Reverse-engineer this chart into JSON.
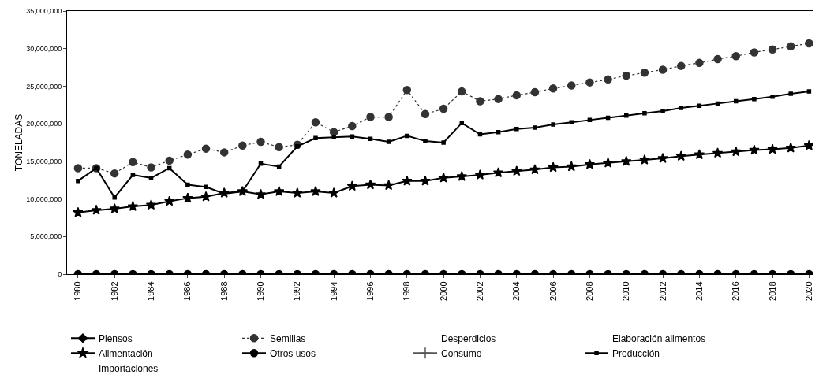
{
  "chart_data": {
    "type": "line",
    "ylabel": "TONELADAS",
    "grid": false,
    "legend": "bottom",
    "x": [
      1980,
      1981,
      1982,
      1983,
      1984,
      1985,
      1986,
      1987,
      1988,
      1989,
      1990,
      1991,
      1992,
      1993,
      1994,
      1995,
      1996,
      1997,
      1998,
      1999,
      2000,
      2001,
      2002,
      2003,
      2004,
      2005,
      2006,
      2007,
      2008,
      2009,
      2010,
      2011,
      2012,
      2013,
      2014,
      2015,
      2016,
      2017,
      2018,
      2019,
      2020
    ],
    "xlim": [
      1979.4,
      2020.2
    ],
    "xticks": [
      1980,
      1982,
      1984,
      1986,
      1988,
      1990,
      1992,
      1994,
      1996,
      1998,
      2000,
      2002,
      2004,
      2006,
      2008,
      2010,
      2012,
      2014,
      2016,
      2018,
      2020
    ],
    "ylim": [
      0,
      35000000
    ],
    "yticks": [
      {
        "value": 0,
        "label": "0"
      },
      {
        "value": 5000000,
        "label": "5,000,000"
      },
      {
        "value": 10000000,
        "label": "10,000,000"
      },
      {
        "value": 15000000,
        "label": "15,000,000"
      },
      {
        "value": 20000000,
        "label": "20,000,000"
      },
      {
        "value": 25000000,
        "label": "25,000,000"
      },
      {
        "value": 30000000,
        "label": "30,000,000"
      },
      {
        "value": 35000000,
        "label": "35,000,000"
      }
    ],
    "series": [
      {
        "name": "Piensos",
        "color": "#000000",
        "marker": "diamond",
        "line_style": "solid",
        "values": [
          null,
          null,
          null,
          null,
          null,
          null,
          null,
          null,
          null,
          null,
          null,
          null,
          null,
          null,
          null,
          null,
          null,
          null,
          null,
          null,
          null,
          null,
          null,
          null,
          null,
          null,
          null,
          null,
          null,
          null,
          null,
          null,
          null,
          null,
          null,
          null,
          null,
          null,
          null,
          null,
          null
        ]
      },
      {
        "name": "Semillas",
        "color": "#333333",
        "marker": "circle",
        "line_style": "dotted",
        "values": [
          14100000,
          14100000,
          13400000,
          14900000,
          14200000,
          15100000,
          15900000,
          16700000,
          16200000,
          17100000,
          17600000,
          16900000,
          17200000,
          20200000,
          18900000,
          19700000,
          20900000,
          20900000,
          24500000,
          21300000,
          22000000,
          24300000,
          23000000,
          23300000,
          23800000,
          24200000,
          24700000,
          25100000,
          25500000,
          25900000,
          26400000,
          26800000,
          27200000,
          27700000,
          28100000,
          28600000,
          29000000,
          29500000,
          29900000,
          30300000,
          30700000
        ]
      },
      {
        "name": "Desperdicios",
        "marker": "none",
        "line_style": "solid",
        "values": [
          null,
          null,
          null,
          null,
          null,
          null,
          null,
          null,
          null,
          null,
          null,
          null,
          null,
          null,
          null,
          null,
          null,
          null,
          null,
          null,
          null,
          null,
          null,
          null,
          null,
          null,
          null,
          null,
          null,
          null,
          null,
          null,
          null,
          null,
          null,
          null,
          null,
          null,
          null,
          null,
          null
        ]
      },
      {
        "name": "Elaboración alimentos",
        "marker": "none",
        "line_style": "solid",
        "values": [
          null,
          null,
          null,
          null,
          null,
          null,
          null,
          null,
          null,
          null,
          null,
          null,
          null,
          null,
          null,
          null,
          null,
          null,
          null,
          null,
          null,
          null,
          null,
          null,
          null,
          null,
          null,
          null,
          null,
          null,
          null,
          null,
          null,
          null,
          null,
          null,
          null,
          null,
          null,
          null,
          null
        ]
      },
      {
        "name": "Alimentación",
        "color": "#000000",
        "marker": "star",
        "line_style": "solid",
        "values": [
          8200000,
          8500000,
          8700000,
          9000000,
          9200000,
          9700000,
          10100000,
          10300000,
          10800000,
          11000000,
          10600000,
          11000000,
          10800000,
          11000000,
          10800000,
          11700000,
          11900000,
          11800000,
          12400000,
          12400000,
          12800000,
          13000000,
          13200000,
          13500000,
          13700000,
          13900000,
          14200000,
          14300000,
          14600000,
          14800000,
          15000000,
          15200000,
          15400000,
          15700000,
          15900000,
          16100000,
          16300000,
          16500000,
          16600000,
          16800000,
          17100000
        ]
      },
      {
        "name": "Otros usos",
        "color": "#000000",
        "marker": "circle",
        "line_style": "solid",
        "values": [
          0,
          0,
          0,
          0,
          0,
          0,
          0,
          0,
          0,
          0,
          0,
          0,
          0,
          0,
          0,
          0,
          0,
          0,
          0,
          0,
          0,
          0,
          0,
          0,
          0,
          0,
          0,
          0,
          0,
          0,
          0,
          0,
          0,
          0,
          0,
          0,
          0,
          0,
          0,
          0,
          0
        ]
      },
      {
        "name": "Consumo",
        "color": "#555555",
        "marker": "cross",
        "line_style": "solid",
        "values": [
          null,
          null,
          null,
          null,
          null,
          null,
          null,
          null,
          null,
          null,
          null,
          null,
          null,
          null,
          null,
          null,
          null,
          null,
          null,
          null,
          null,
          null,
          null,
          null,
          null,
          null,
          null,
          null,
          null,
          null,
          null,
          null,
          null,
          null,
          null,
          null,
          null,
          null,
          null,
          null,
          null
        ]
      },
      {
        "name": "Producción",
        "color": "#000000",
        "marker": "square",
        "line_style": "solid",
        "values": [
          12400000,
          14100000,
          10200000,
          13200000,
          12800000,
          14100000,
          11900000,
          11600000,
          10700000,
          11000000,
          14700000,
          14300000,
          17000000,
          18100000,
          18200000,
          18300000,
          18000000,
          17600000,
          18400000,
          17700000,
          17500000,
          20100000,
          18600000,
          18900000,
          19300000,
          19500000,
          19900000,
          20200000,
          20500000,
          20800000,
          21100000,
          21400000,
          21700000,
          22100000,
          22400000,
          22700000,
          23000000,
          23300000,
          23600000,
          24000000,
          24300000
        ]
      },
      {
        "name": "Importaciones",
        "marker": "none",
        "line_style": "solid",
        "values": [
          null,
          null,
          null,
          null,
          null,
          null,
          null,
          null,
          null,
          null,
          null,
          null,
          null,
          null,
          null,
          null,
          null,
          null,
          null,
          null,
          null,
          null,
          null,
          null,
          null,
          null,
          null,
          null,
          null,
          null,
          null,
          null,
          null,
          null,
          null,
          null,
          null,
          null,
          null,
          null,
          null
        ]
      }
    ]
  }
}
